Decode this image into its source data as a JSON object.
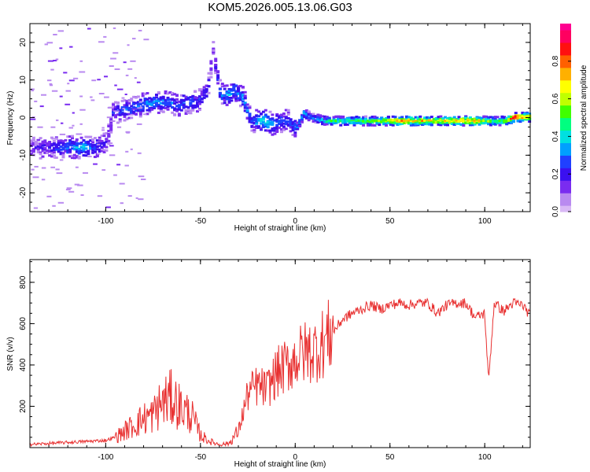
{
  "figure_title": "KOM5.2026.005.13.06.G03",
  "colors": {
    "snr_line": "#e83030",
    "axes": "#000000",
    "spectrogram_palette": [
      "#d9b8f5",
      "#b98af0",
      "#7a2cf0",
      "#3b10f0",
      "#2040ff",
      "#00a0ff",
      "#00e0e0",
      "#00ff80",
      "#40ff00",
      "#c0ff00",
      "#ffff00",
      "#ffb000",
      "#ff6000",
      "#ff1010",
      "#ff0060",
      "#ff0090"
    ]
  },
  "chart_data": [
    {
      "type": "heatmap",
      "title": "",
      "xlabel": "Height of straight line (km)",
      "ylabel": "Frequency (Hz)",
      "xlim": [
        -140,
        124
      ],
      "ylim": [
        -25,
        25
      ],
      "x_ticks": [
        -100,
        -50,
        0,
        50,
        100
      ],
      "x_tick_labels": [
        "-100",
        "-50",
        "0",
        "50",
        "100"
      ],
      "y_ticks": [
        -20,
        -10,
        0,
        10,
        20
      ],
      "y_tick_labels": [
        "-20",
        "-10",
        "0",
        "10",
        "20"
      ],
      "colorbar": {
        "label": "Normalized spectral amplitude",
        "range": [
          0,
          1
        ],
        "ticks": [
          0.0,
          0.2,
          0.4,
          0.6,
          0.8
        ],
        "tick_labels": [
          "0.0",
          "0.2",
          "0.4",
          "0.6",
          "0.8"
        ]
      },
      "ridge": {
        "description": "approximate dominant frequency track (km, Hz, normalized amplitude)",
        "x": [
          -138,
          -130,
          -120,
          -112,
          -105,
          -100,
          -97,
          -92,
          -86,
          -80,
          -74,
          -68,
          -62,
          -57,
          -52,
          -47,
          -44,
          -40,
          -36,
          -32,
          -28,
          -24,
          -20,
          -16,
          -12,
          -8,
          -4,
          0,
          4,
          8,
          15,
          25,
          35,
          45,
          55,
          65,
          75,
          85,
          95,
          100,
          105,
          110,
          115,
          124
        ],
        "y": [
          -8,
          -8,
          -8,
          -8,
          -8,
          -7,
          1,
          2,
          2.5,
          3.5,
          4,
          4,
          3,
          4,
          4,
          7,
          17,
          6,
          6,
          7,
          5,
          -1,
          -1,
          -1,
          -2,
          -1,
          -1,
          -3,
          1,
          0,
          -1,
          -1,
          -1,
          -1,
          -1,
          -1,
          -1,
          -1,
          -1,
          -1,
          -1,
          -1,
          0,
          0
        ],
        "amp": [
          0.15,
          0.2,
          0.3,
          0.38,
          0.25,
          0.15,
          0.2,
          0.28,
          0.3,
          0.32,
          0.33,
          0.3,
          0.28,
          0.3,
          0.25,
          0.2,
          0.12,
          0.3,
          0.35,
          0.3,
          0.35,
          0.25,
          0.35,
          0.45,
          0.3,
          0.3,
          0.25,
          0.3,
          0.4,
          0.3,
          0.45,
          0.5,
          0.55,
          0.6,
          0.8,
          0.75,
          0.7,
          0.75,
          0.8,
          0.6,
          0.5,
          0.6,
          0.95,
          0.7
        ]
      }
    },
    {
      "type": "line",
      "title": "",
      "xlabel": "Height of straight line (km)",
      "ylabel": "SNR (v/v)",
      "xlim": [
        -140,
        124
      ],
      "ylim": [
        0,
        910
      ],
      "x_ticks": [
        -100,
        -50,
        0,
        50,
        100
      ],
      "x_tick_labels": [
        "-100",
        "-50",
        "0",
        "50",
        "100"
      ],
      "y_ticks": [
        200,
        400,
        600,
        800
      ],
      "y_tick_labels": [
        "200",
        "400",
        "600",
        "800"
      ],
      "series": [
        {
          "name": "SNR",
          "x": [
            -140,
            -130,
            -120,
            -110,
            -100,
            -95,
            -90,
            -85,
            -80,
            -75,
            -70,
            -65,
            -60,
            -55,
            -50,
            -45,
            -40,
            -35,
            -30,
            -25,
            -20,
            -15,
            -10,
            -5,
            0,
            5,
            10,
            15,
            20,
            25,
            30,
            35,
            40,
            45,
            50,
            55,
            60,
            65,
            70,
            75,
            80,
            85,
            90,
            95,
            100,
            102,
            105,
            110,
            115,
            120,
            124
          ],
          "values": [
            15,
            20,
            25,
            30,
            35,
            50,
            80,
            110,
            140,
            160,
            220,
            240,
            190,
            160,
            60,
            30,
            15,
            20,
            80,
            260,
            300,
            280,
            360,
            390,
            430,
            460,
            470,
            510,
            560,
            620,
            650,
            670,
            690,
            670,
            690,
            700,
            690,
            700,
            700,
            650,
            690,
            700,
            700,
            630,
            650,
            320,
            700,
            660,
            700,
            690,
            640
          ]
        }
      ]
    }
  ]
}
